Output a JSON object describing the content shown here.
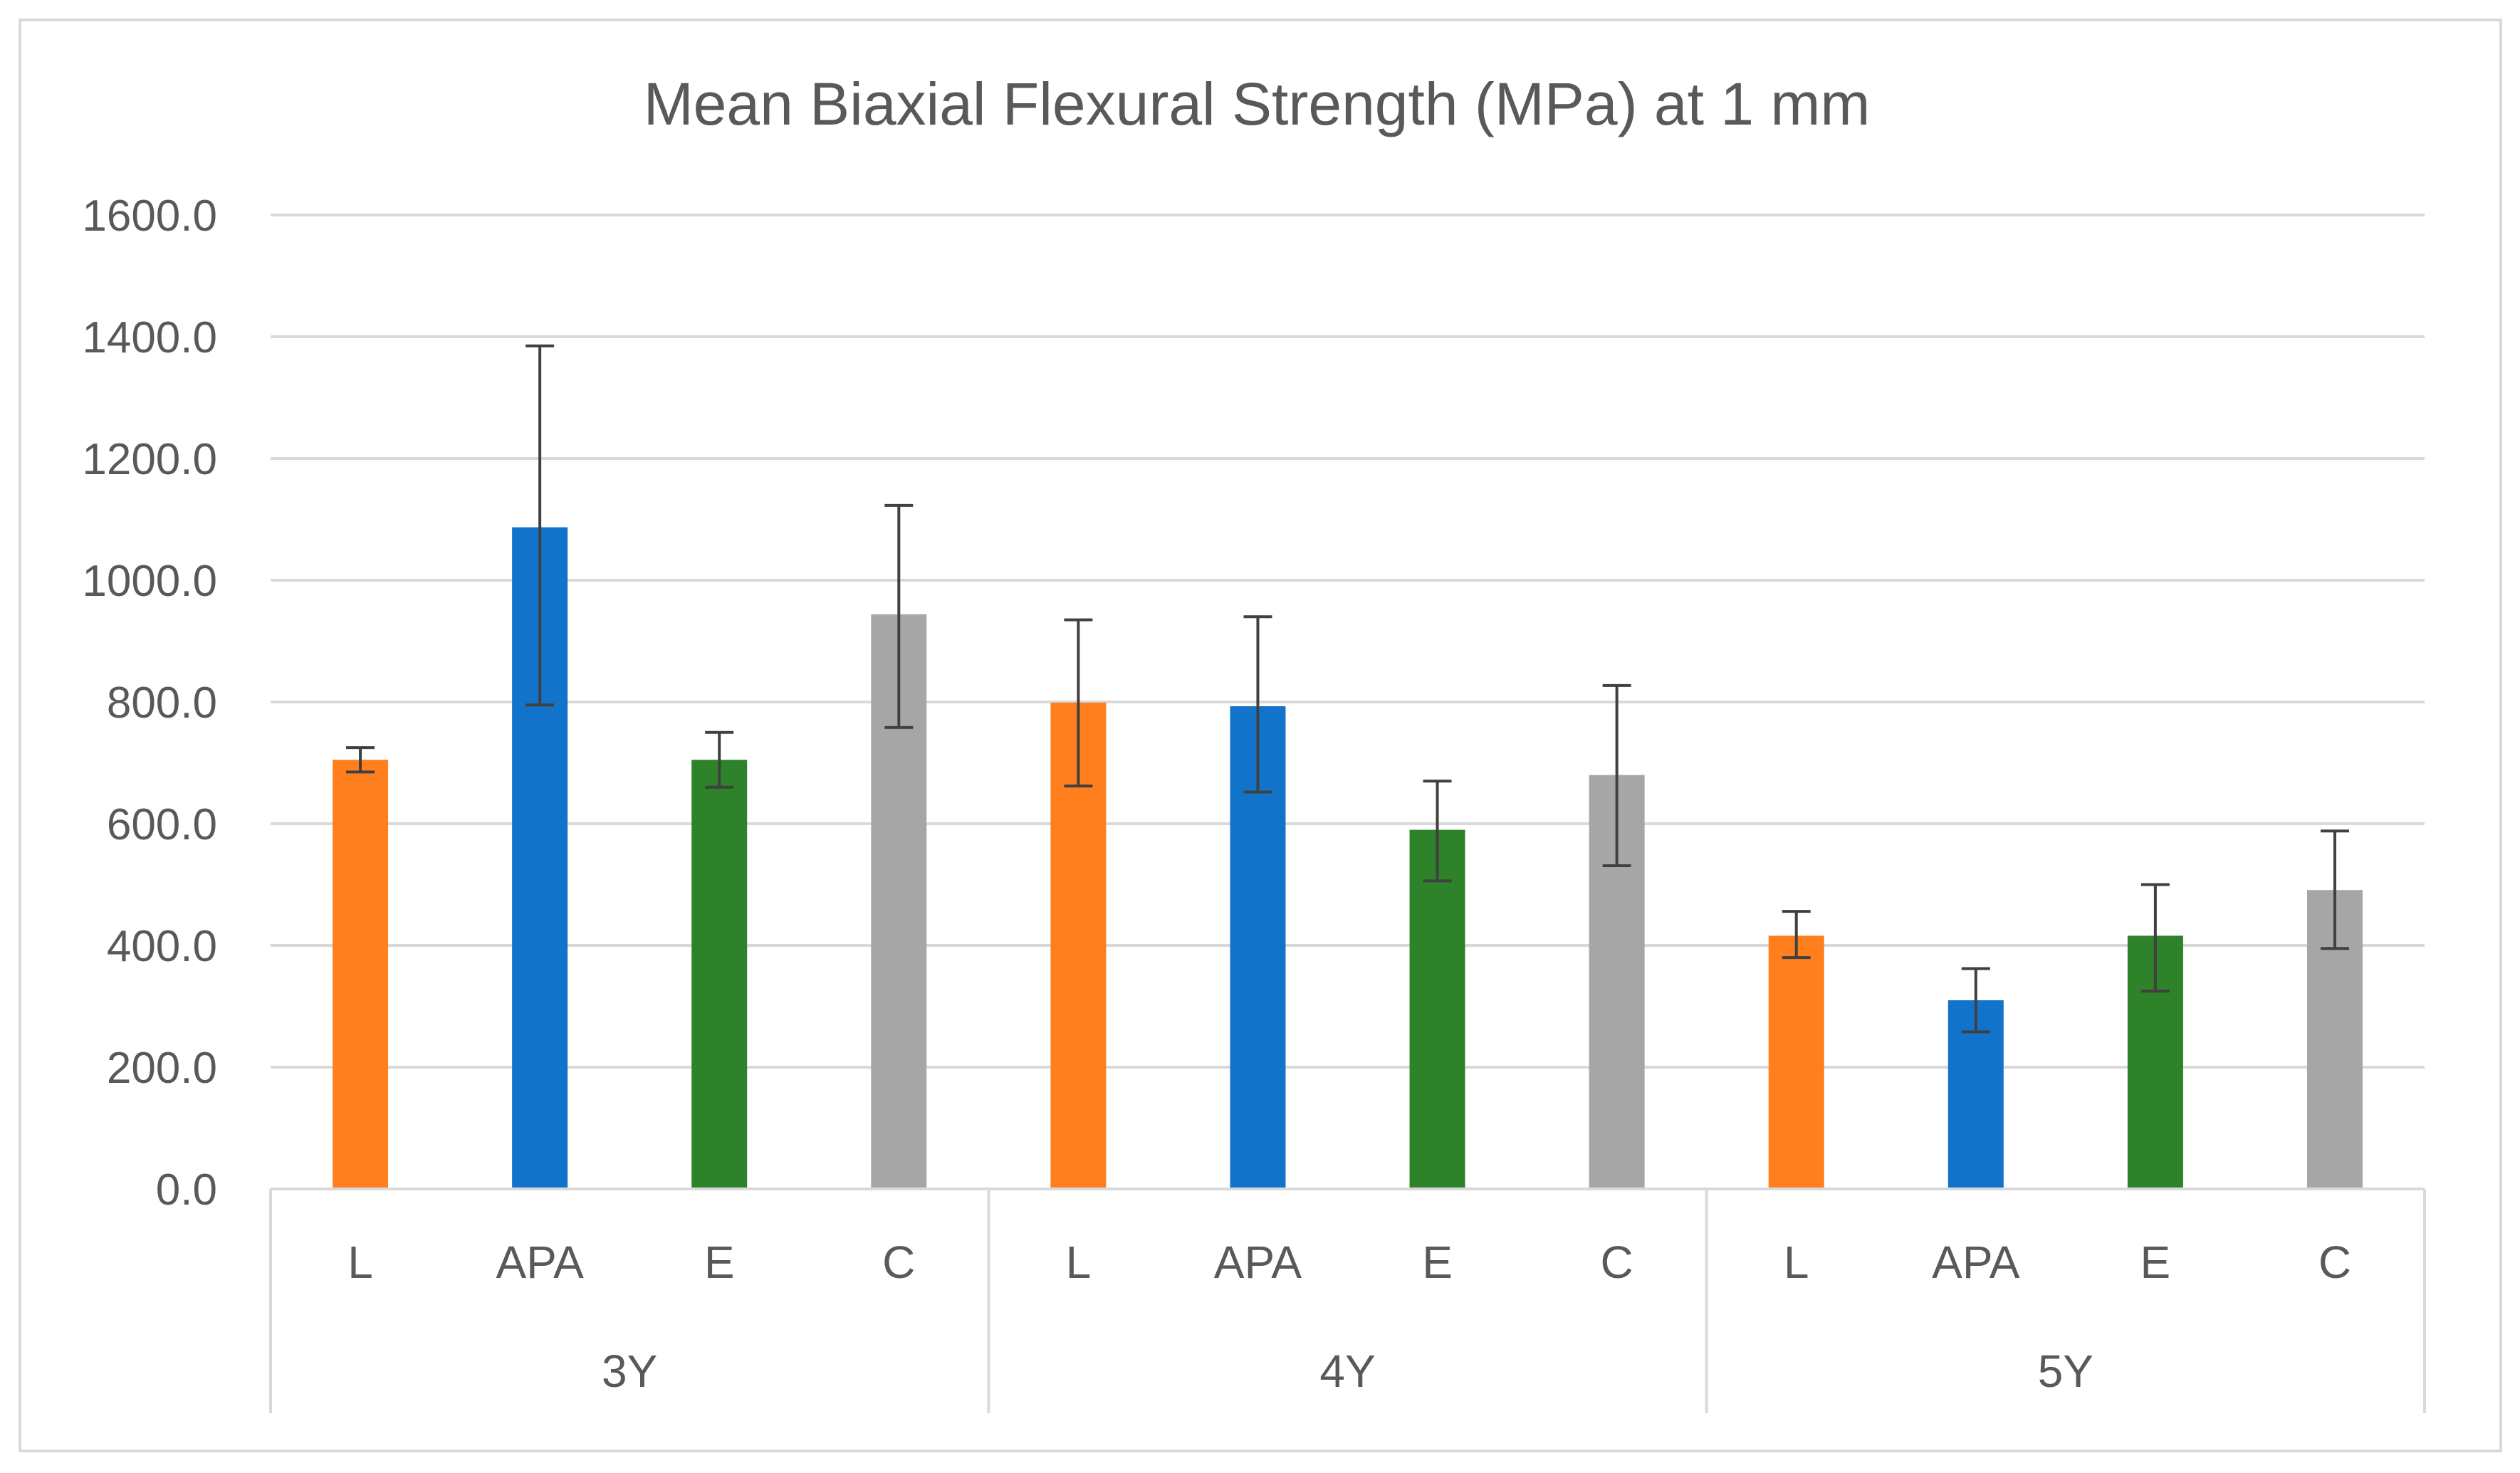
{
  "chart_data": {
    "type": "bar",
    "title": "Mean Biaxial Flexural Strength (MPa) at 1 mm",
    "xlabel": "",
    "ylabel": "",
    "ylim": [
      0,
      1600
    ],
    "yticks": [
      0,
      200,
      400,
      600,
      800,
      1000,
      1200,
      1400,
      1600
    ],
    "ytick_labels": [
      "0.0",
      "200.0",
      "400.0",
      "600.0",
      "800.0",
      "1000.0",
      "1200.0",
      "1400.0",
      "1600.0"
    ],
    "grid": true,
    "legend": "none",
    "colors": {
      "L": "#ff7f1e",
      "APA": "#1273cb",
      "E": "#2e8229",
      "C": "#a6a6a6"
    },
    "groups": [
      {
        "name": "3Y",
        "bars": [
          {
            "category": "L",
            "value": 705,
            "error_low": 685,
            "error_high": 725
          },
          {
            "category": "APA",
            "value": 1087,
            "error_low": 795,
            "error_high": 1385
          },
          {
            "category": "E",
            "value": 705,
            "error_low": 660,
            "error_high": 750
          },
          {
            "category": "C",
            "value": 944,
            "error_low": 758,
            "error_high": 1123
          }
        ]
      },
      {
        "name": "4Y",
        "bars": [
          {
            "category": "L",
            "value": 799,
            "error_low": 662,
            "error_high": 935
          },
          {
            "category": "APA",
            "value": 793,
            "error_low": 652,
            "error_high": 940
          },
          {
            "category": "E",
            "value": 590,
            "error_low": 506,
            "error_high": 670
          },
          {
            "category": "C",
            "value": 680,
            "error_low": 531,
            "error_high": 827
          }
        ]
      },
      {
        "name": "5Y",
        "bars": [
          {
            "category": "L",
            "value": 416,
            "error_low": 380,
            "error_high": 456
          },
          {
            "category": "APA",
            "value": 310,
            "error_low": 258,
            "error_high": 362
          },
          {
            "category": "E",
            "value": 416,
            "error_low": 325,
            "error_high": 500
          },
          {
            "category": "C",
            "value": 491,
            "error_low": 395,
            "error_high": 588
          }
        ]
      }
    ]
  }
}
